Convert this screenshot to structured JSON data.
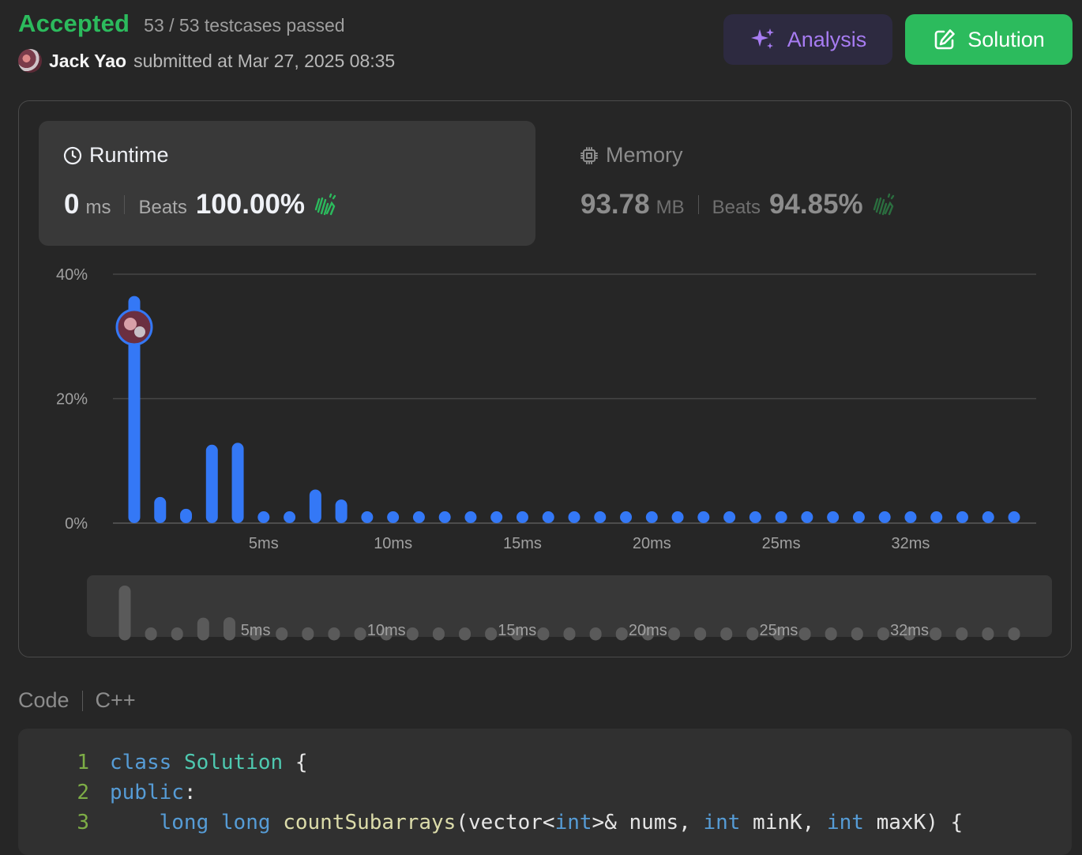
{
  "header": {
    "status": "Accepted",
    "testcases": "53 / 53 testcases passed",
    "user_name": "Jack Yao",
    "submitted_text": "submitted at Mar 27, 2025 08:35"
  },
  "buttons": {
    "analysis_label": "Analysis",
    "solution_label": "Solution"
  },
  "runtime": {
    "title": "Runtime",
    "value": "0",
    "unit": "ms",
    "beats_label": "Beats",
    "beats_pct": "100.00%"
  },
  "memory": {
    "title": "Memory",
    "value": "93.78",
    "unit": "MB",
    "beats_label": "Beats",
    "beats_pct": "94.85%"
  },
  "colors": {
    "accepted": "#2cbb5d",
    "bar": "#3478f6",
    "analysis": "#a77cf2",
    "solution_bg": "#2cbb5d"
  },
  "chart_data": {
    "type": "bar",
    "y_ticks": [
      "40%",
      "20%",
      "0%"
    ],
    "ylim": [
      0,
      40
    ],
    "x_tick_labels": [
      "5ms",
      "10ms",
      "15ms",
      "20ms",
      "25ms",
      "32ms"
    ],
    "x_tick_bar_index": [
      5,
      10,
      15,
      20,
      25,
      30
    ],
    "values": [
      36.5,
      4.2,
      2.3,
      12.6,
      12.9,
      1.0,
      0.9,
      5.4,
      3.8,
      0.6,
      0.6,
      0.6,
      0.6,
      0.6,
      0.6,
      0.6,
      0.6,
      0.6,
      0.6,
      0.6,
      0.6,
      0.6,
      0.6,
      0.6,
      0.6,
      0.6,
      0.6,
      0.6,
      0.6,
      0.6,
      0.6,
      0.6,
      0.6,
      0.6,
      0.6
    ],
    "marker_bar_index": 0,
    "grid": true
  },
  "code": {
    "label": "Code",
    "language": "C++",
    "lines": [
      {
        "n": "1",
        "tokens": [
          [
            "kw",
            "class"
          ],
          [
            "tx",
            " "
          ],
          [
            "cls",
            "Solution"
          ],
          [
            "tx",
            " {"
          ]
        ]
      },
      {
        "n": "2",
        "tokens": [
          [
            "kw",
            "public"
          ],
          [
            "tx",
            ":"
          ]
        ]
      },
      {
        "n": "3",
        "tokens": [
          [
            "tx",
            "    "
          ],
          [
            "kw",
            "long"
          ],
          [
            "tx",
            " "
          ],
          [
            "kw",
            "long"
          ],
          [
            "tx",
            " "
          ],
          [
            "fn",
            "countSubarrays"
          ],
          [
            "tx",
            "(vector<"
          ],
          [
            "kw",
            "int"
          ],
          [
            "tx",
            ">& nums, "
          ],
          [
            "kw",
            "int"
          ],
          [
            "tx",
            " minK, "
          ],
          [
            "kw",
            "int"
          ],
          [
            "tx",
            " maxK) {"
          ]
        ]
      }
    ]
  }
}
